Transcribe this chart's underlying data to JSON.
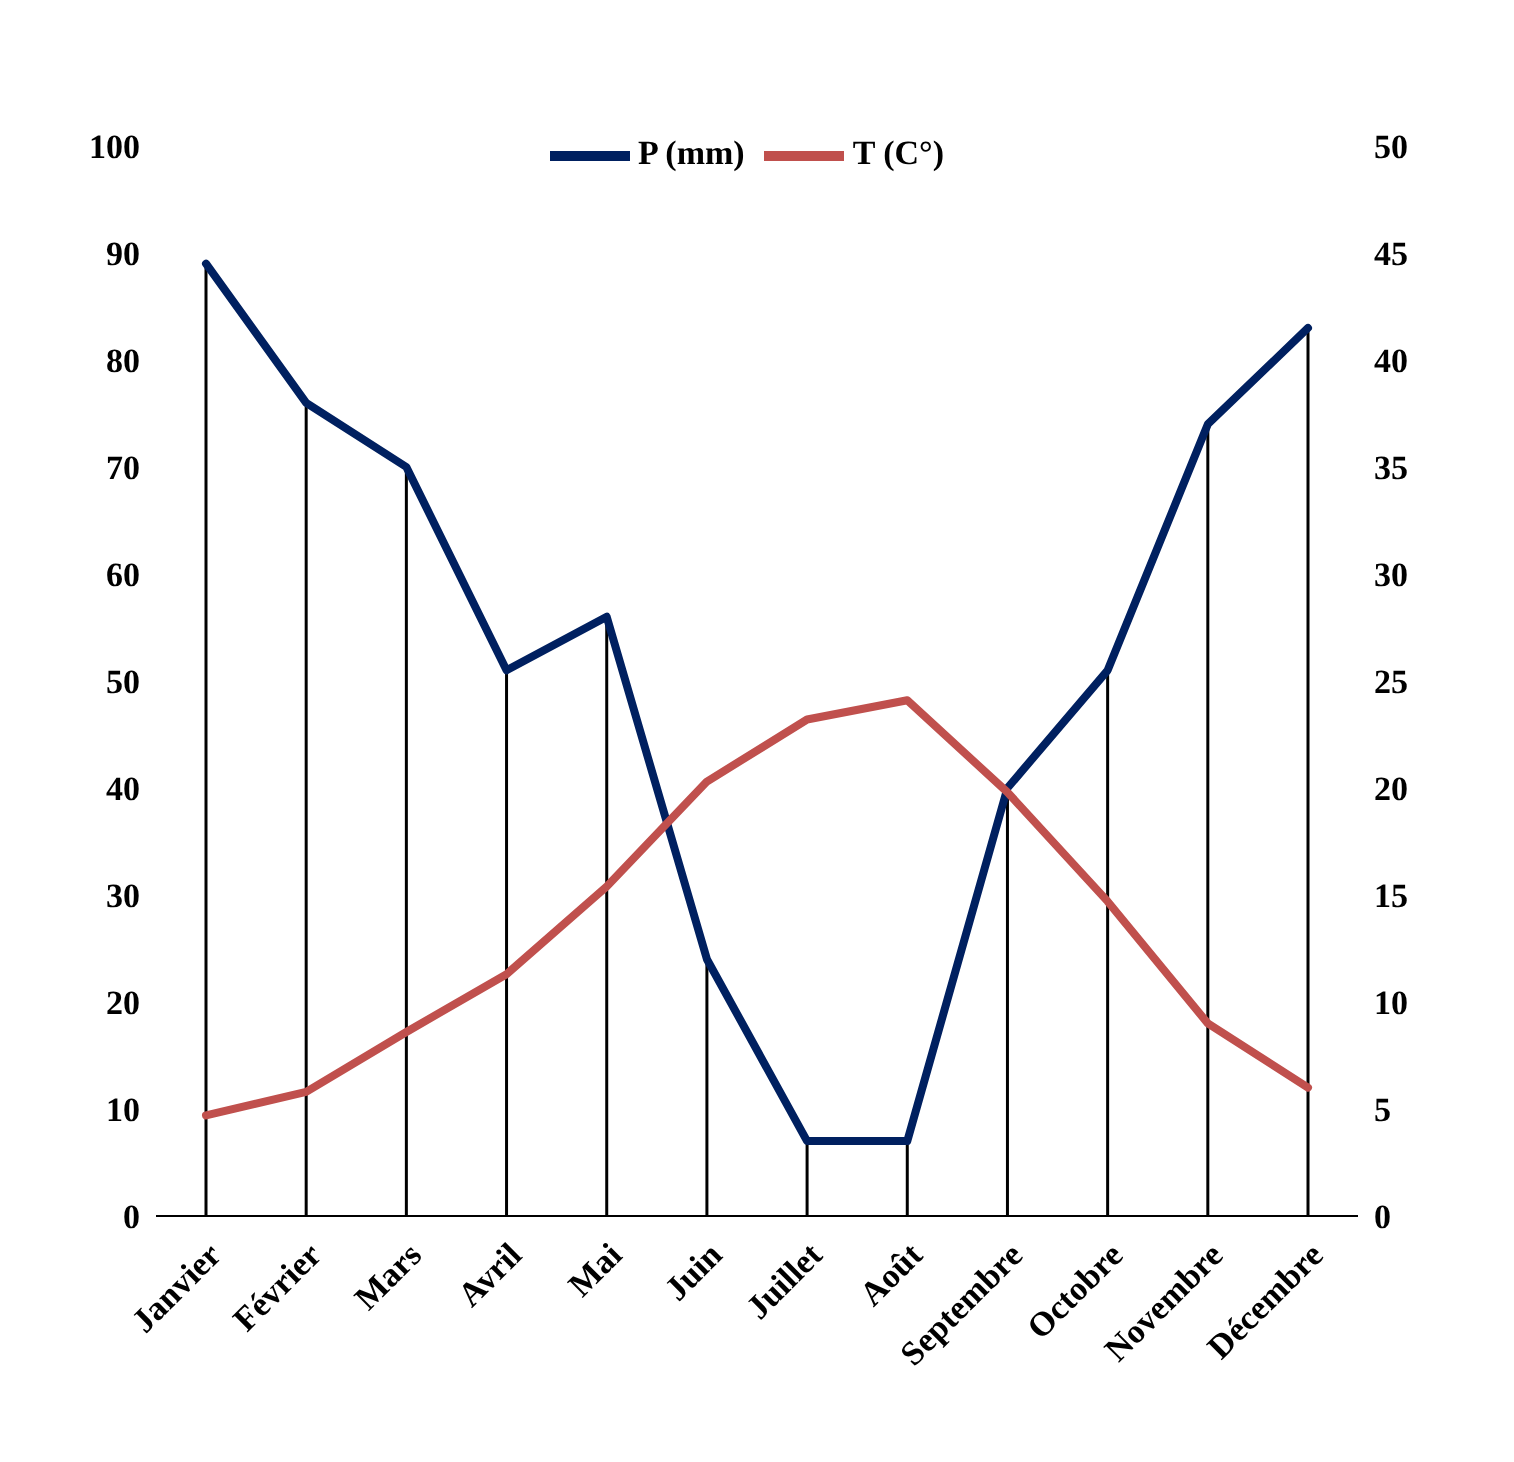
{
  "chart_data": {
    "type": "line",
    "categories": [
      "Janvier",
      "Février",
      "Mars",
      "Avril",
      "Mai",
      "Juin",
      "Juillet",
      "Août",
      "Septembre",
      "Octobre",
      "Novembre",
      "Décembre"
    ],
    "series": [
      {
        "name": "P (mm)",
        "color": "#002060",
        "values": [
          89,
          76,
          70,
          51,
          56,
          24,
          7,
          7,
          40,
          51,
          74,
          83
        ],
        "errors": [
          [
            0,
            89
          ],
          [
            0,
            76
          ],
          [
            0,
            70
          ],
          [
            0,
            51
          ],
          [
            0,
            56
          ],
          [
            0,
            24
          ],
          [
            0,
            7
          ],
          [
            0,
            7
          ],
          [
            0,
            40
          ],
          [
            0,
            51
          ],
          [
            0,
            74
          ],
          [
            0,
            83
          ]
        ]
      },
      {
        "name": "T (C°)",
        "color": "#c0504d",
        "axis": "y2",
        "values": [
          4.7,
          5.8,
          8.6,
          11.3,
          15.4,
          20.3,
          23.2,
          24.1,
          19.8,
          14.7,
          9.0,
          6.0
        ]
      }
    ],
    "ylim": [
      0,
      100
    ],
    "yticks": [
      0,
      10,
      20,
      30,
      40,
      50,
      60,
      70,
      80,
      90,
      100
    ],
    "y2lim": [
      0,
      50
    ],
    "y2ticks": [
      0,
      5,
      10,
      15,
      20,
      25,
      30,
      35,
      40,
      45,
      50
    ],
    "legend": "top",
    "grid": false,
    "marker": "none",
    "line_style": "solid"
  }
}
